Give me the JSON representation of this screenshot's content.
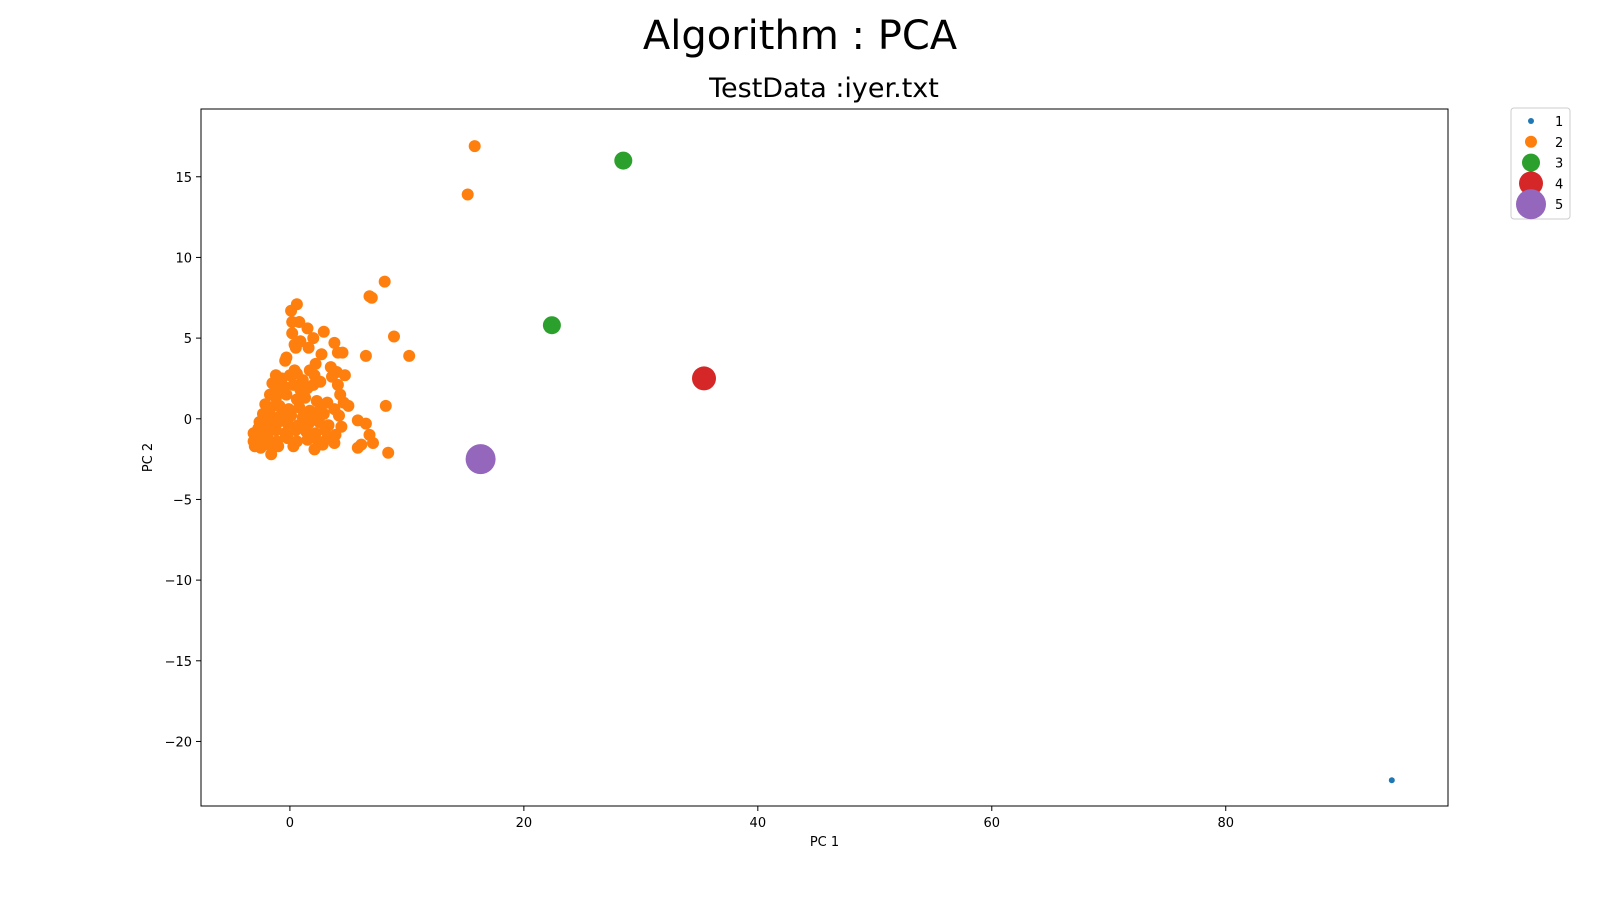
{
  "chart_data": {
    "type": "scatter",
    "suptitle": "Algorithm : PCA",
    "title": "TestData :iyer.txt",
    "xlabel": "PC 1",
    "ylabel": "PC 2",
    "xlim": [
      -7.6,
      99.0
    ],
    "ylim": [
      -24.0,
      19.2
    ],
    "xticks": [
      0,
      20,
      40,
      60,
      80
    ],
    "yticks": [
      15,
      10,
      5,
      0,
      -5,
      -10,
      -15,
      -20
    ],
    "ytick_labels": [
      "15",
      "10",
      "5",
      "0",
      "−5",
      "−10",
      "−15",
      "−20"
    ],
    "grid": false,
    "legend": {
      "placement": "outside-top-right",
      "entries": [
        "1",
        "2",
        "3",
        "4",
        "5"
      ]
    },
    "series": [
      {
        "name": "1",
        "color": "#1f77b4",
        "size": 3,
        "points": [
          [
            94.2,
            -22.4
          ]
        ]
      },
      {
        "name": "2",
        "color": "#ff7f0e",
        "size": 6,
        "points": [
          [
            15.8,
            16.9
          ],
          [
            15.2,
            13.9
          ],
          [
            8.1,
            8.5
          ],
          [
            6.8,
            7.6
          ],
          [
            7.0,
            7.5
          ],
          [
            0.6,
            7.1
          ],
          [
            0.1,
            6.7
          ],
          [
            0.2,
            6.0
          ],
          [
            0.8,
            6.0
          ],
          [
            1.5,
            5.6
          ],
          [
            2.0,
            5.0
          ],
          [
            2.9,
            5.4
          ],
          [
            0.9,
            4.8
          ],
          [
            0.4,
            4.6
          ],
          [
            0.2,
            5.3
          ],
          [
            0.5,
            4.4
          ],
          [
            1.6,
            4.4
          ],
          [
            3.8,
            4.7
          ],
          [
            8.9,
            5.1
          ],
          [
            4.5,
            4.1
          ],
          [
            4.1,
            4.1
          ],
          [
            2.7,
            4.0
          ],
          [
            6.5,
            3.9
          ],
          [
            10.2,
            3.9
          ],
          [
            -0.4,
            3.6
          ],
          [
            -0.3,
            3.8
          ],
          [
            0.4,
            3.0
          ],
          [
            1.7,
            3.0
          ],
          [
            2.2,
            3.4
          ],
          [
            3.5,
            3.2
          ],
          [
            4.0,
            2.9
          ],
          [
            4.7,
            2.7
          ],
          [
            -1.2,
            2.7
          ],
          [
            -0.7,
            2.5
          ],
          [
            0.0,
            2.7
          ],
          [
            0.6,
            2.8
          ],
          [
            1.1,
            2.4
          ],
          [
            2.1,
            2.7
          ],
          [
            2.6,
            2.3
          ],
          [
            3.6,
            2.6
          ],
          [
            4.1,
            2.1
          ],
          [
            4.3,
            1.5
          ],
          [
            -1.5,
            2.2
          ],
          [
            -1.0,
            1.9
          ],
          [
            -0.5,
            2.0
          ],
          [
            0.3,
            2.1
          ],
          [
            0.9,
            1.8
          ],
          [
            1.5,
            1.9
          ],
          [
            2.0,
            2.1
          ],
          [
            -1.7,
            1.5
          ],
          [
            -1.2,
            1.3
          ],
          [
            -0.3,
            1.5
          ],
          [
            0.6,
            1.2
          ],
          [
            1.3,
            1.3
          ],
          [
            2.3,
            1.1
          ],
          [
            3.2,
            1.0
          ],
          [
            4.6,
            1.0
          ],
          [
            5.0,
            0.8
          ],
          [
            8.2,
            0.8
          ],
          [
            -2.1,
            0.9
          ],
          [
            -1.6,
            0.7
          ],
          [
            -0.9,
            0.8
          ],
          [
            -0.1,
            0.6
          ],
          [
            0.8,
            0.7
          ],
          [
            1.7,
            0.5
          ],
          [
            2.6,
            0.6
          ],
          [
            3.8,
            0.6
          ],
          [
            -2.3,
            0.3
          ],
          [
            -1.5,
            0.1
          ],
          [
            -0.8,
            0.2
          ],
          [
            0.1,
            0.2
          ],
          [
            1.1,
            0.1
          ],
          [
            2.0,
            0.1
          ],
          [
            2.9,
            0.3
          ],
          [
            4.2,
            0.2
          ],
          [
            -2.6,
            -0.2
          ],
          [
            -1.8,
            -0.3
          ],
          [
            -1.0,
            -0.2
          ],
          [
            -0.2,
            -0.3
          ],
          [
            0.7,
            -0.4
          ],
          [
            1.6,
            -0.3
          ],
          [
            2.5,
            -0.2
          ],
          [
            3.3,
            -0.4
          ],
          [
            4.4,
            -0.5
          ],
          [
            5.8,
            -0.1
          ],
          [
            6.5,
            -0.3
          ],
          [
            -3.1,
            -0.9
          ],
          [
            -2.7,
            -0.6
          ],
          [
            -2.0,
            -0.8
          ],
          [
            -1.2,
            -0.7
          ],
          [
            -0.4,
            -0.9
          ],
          [
            0.5,
            -0.7
          ],
          [
            1.4,
            -0.8
          ],
          [
            2.2,
            -0.9
          ],
          [
            3.0,
            -0.7
          ],
          [
            3.9,
            -1.0
          ],
          [
            6.8,
            -1.0
          ],
          [
            -3.1,
            -1.4
          ],
          [
            -2.6,
            -1.3
          ],
          [
            -1.9,
            -1.2
          ],
          [
            -1.1,
            -1.4
          ],
          [
            -0.2,
            -1.2
          ],
          [
            0.6,
            -1.4
          ],
          [
            1.5,
            -1.3
          ],
          [
            2.4,
            -1.4
          ],
          [
            3.2,
            -1.2
          ],
          [
            3.8,
            -1.5
          ],
          [
            7.1,
            -1.5
          ],
          [
            -3.0,
            -1.7
          ],
          [
            -2.5,
            -1.8
          ],
          [
            -1.8,
            -1.6
          ],
          [
            -1.0,
            -1.7
          ],
          [
            0.3,
            -1.7
          ],
          [
            2.1,
            -1.9
          ],
          [
            2.8,
            -1.6
          ],
          [
            5.8,
            -1.8
          ],
          [
            6.1,
            -1.6
          ],
          [
            8.4,
            -2.1
          ],
          [
            -1.6,
            -2.2
          ]
        ]
      },
      {
        "name": "3",
        "color": "#2ca02c",
        "size": 9,
        "points": [
          [
            28.5,
            16.0
          ],
          [
            22.4,
            5.8
          ]
        ]
      },
      {
        "name": "4",
        "color": "#d62728",
        "size": 12,
        "points": [
          [
            35.4,
            2.5
          ]
        ]
      },
      {
        "name": "5",
        "color": "#9467bd",
        "size": 15,
        "points": [
          [
            16.3,
            -2.5
          ]
        ]
      }
    ]
  }
}
